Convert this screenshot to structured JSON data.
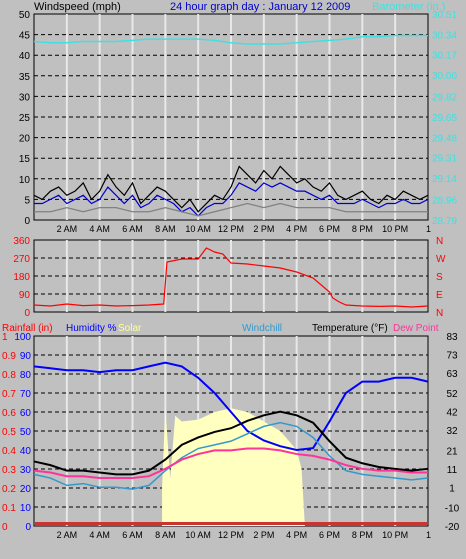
{
  "header": {
    "left_label": "Windspeed (mph)",
    "title": "24 hour graph day : January 12 2009",
    "right_label": "Barometer (in.)"
  },
  "colors": {
    "background": "#c0c0c0",
    "wind": "#000000",
    "gust": "#0000cc",
    "wind_gray": "#808080",
    "barometer": "#40e0e0",
    "direction": "#ff0000",
    "humidity": "#0000ff",
    "solar": "#ffffc0",
    "windchill": "#3399cc",
    "temperature": "#000000",
    "dewpoint": "#ff3399",
    "rainfall": "#ff0000"
  },
  "chart_data": [
    {
      "type": "line",
      "name": "wind_barometer",
      "x_ticks": [
        "2 AM",
        "4 AM",
        "6 AM",
        "8 AM",
        "10 AM",
        "12 PM",
        "2 PM",
        "4 PM",
        "6 PM",
        "8 PM",
        "10 PM"
      ],
      "left_axis": {
        "label": "Windspeed (mph)",
        "ticks": [
          0,
          5,
          10,
          15,
          20,
          25,
          30,
          35,
          40,
          45,
          50
        ],
        "ylim": [
          0,
          50
        ]
      },
      "right_axis": {
        "label": "Barometer (in.)",
        "ticks": [
          "28.79",
          "28.96",
          "29.14",
          "29.31",
          "29.48",
          "29.65",
          "29.82",
          "30.00",
          "30.17",
          "30.34",
          "30.51"
        ],
        "ylim": [
          28.79,
          30.51
        ]
      },
      "series": [
        {
          "key": "barometer",
          "x": [
            0,
            1,
            2,
            3,
            4,
            5,
            6,
            7,
            8,
            9,
            10,
            11,
            12,
            13,
            14,
            15,
            16,
            17,
            18,
            19,
            20,
            21,
            22,
            23,
            24
          ],
          "values": [
            30.28,
            30.27,
            30.27,
            30.28,
            30.28,
            30.28,
            30.29,
            30.3,
            30.3,
            30.3,
            30.3,
            30.29,
            30.27,
            30.26,
            30.26,
            30.26,
            30.27,
            30.28,
            30.29,
            30.3,
            30.32,
            30.32,
            30.33,
            30.33,
            30.33
          ]
        },
        {
          "key": "wind",
          "x": [
            0,
            0.5,
            1,
            1.5,
            2,
            2.5,
            3,
            3.5,
            4,
            4.5,
            5,
            5.5,
            6,
            6.5,
            7,
            7.5,
            8,
            8.5,
            9,
            9.5,
            10,
            10.5,
            11,
            11.5,
            12,
            12.5,
            13,
            13.5,
            14,
            14.5,
            15,
            15.5,
            16,
            16.5,
            17,
            17.5,
            18,
            18.5,
            19,
            19.5,
            20,
            20.5,
            21,
            21.5,
            22,
            22.5,
            23,
            23.5,
            24
          ],
          "values": [
            6,
            5,
            7,
            8,
            6,
            7,
            9,
            5,
            7,
            11,
            8,
            6,
            9,
            4,
            6,
            8,
            7,
            5,
            3,
            5,
            2,
            4,
            6,
            5,
            8,
            13,
            11,
            9,
            12,
            10,
            13,
            11,
            9,
            10,
            8,
            7,
            9,
            6,
            5,
            6,
            7,
            5,
            4,
            6,
            5,
            7,
            6,
            5,
            6
          ]
        },
        {
          "key": "gust",
          "x": [
            0,
            0.5,
            1,
            1.5,
            2,
            2.5,
            3,
            3.5,
            4,
            4.5,
            5,
            5.5,
            6,
            6.5,
            7,
            7.5,
            8,
            8.5,
            9,
            9.5,
            10,
            10.5,
            11,
            11.5,
            12,
            12.5,
            13,
            13.5,
            14,
            14.5,
            15,
            15.5,
            16,
            16.5,
            17,
            17.5,
            18,
            18.5,
            19,
            19.5,
            20,
            20.5,
            21,
            21.5,
            22,
            22.5,
            23,
            23.5,
            24
          ],
          "values": [
            4,
            4,
            5,
            6,
            4,
            5,
            6,
            4,
            5,
            8,
            6,
            4,
            6,
            3,
            4,
            6,
            5,
            4,
            2,
            3,
            1,
            3,
            4,
            4,
            6,
            9,
            8,
            7,
            9,
            8,
            9,
            8,
            7,
            7,
            6,
            5,
            6,
            4,
            4,
            4,
            5,
            4,
            3,
            4,
            4,
            5,
            4,
            4,
            5
          ]
        },
        {
          "key": "wind_gray",
          "x": [
            0,
            1,
            2,
            3,
            4,
            5,
            6,
            7,
            8,
            9,
            10,
            11,
            12,
            13,
            14,
            15,
            16,
            17,
            18,
            19,
            20,
            21,
            22,
            23,
            24
          ],
          "values": [
            2,
            2,
            3,
            2,
            3,
            3,
            2,
            2,
            3,
            2,
            1,
            2,
            3,
            4,
            3,
            4,
            3,
            3,
            3,
            2,
            2,
            2,
            2,
            2,
            2
          ]
        }
      ]
    },
    {
      "type": "line",
      "name": "wind_direction",
      "left_axis": {
        "ticks": [
          0,
          90,
          180,
          270,
          360
        ],
        "ylim": [
          0,
          360
        ]
      },
      "right_axis": {
        "ticks": [
          "N",
          "W",
          "S",
          "E",
          "N"
        ]
      },
      "series": [
        {
          "key": "direction",
          "x": [
            0,
            1,
            2,
            3,
            4,
            5,
            6,
            7,
            7.9,
            8.1,
            9,
            10,
            10.5,
            11,
            11.5,
            12,
            13,
            14,
            15,
            16,
            17,
            18,
            18.2,
            18.6,
            19,
            20,
            21,
            22,
            23,
            24
          ],
          "values": [
            35,
            30,
            40,
            32,
            35,
            30,
            32,
            35,
            40,
            250,
            265,
            265,
            320,
            300,
            290,
            245,
            240,
            230,
            220,
            200,
            170,
            100,
            70,
            50,
            35,
            30,
            28,
            30,
            25,
            30
          ]
        }
      ]
    },
    {
      "type": "line",
      "name": "temperature_humidity",
      "header_labels": {
        "rainfall": "Rainfall (in)",
        "humidity": "Humidity %",
        "solar": "Solar",
        "windchill": "Windchill",
        "temperature": "Temperature (°F)",
        "dewpoint": "Dew Point"
      },
      "rain_axis": {
        "ticks": [
          "0",
          "0.1",
          "0.2",
          "0.3",
          "0.4",
          "0.5",
          "0.6",
          "0.7",
          "0.8",
          "0.9",
          "1"
        ],
        "ylim": [
          0,
          1
        ]
      },
      "humidity_axis": {
        "ticks": [
          0,
          10,
          20,
          30,
          40,
          50,
          60,
          70,
          80,
          90,
          100
        ],
        "ylim": [
          0,
          100
        ]
      },
      "temp_axis": {
        "ticks": [
          -20,
          -10,
          1,
          11,
          21,
          32,
          42,
          52,
          63,
          73,
          83
        ],
        "ylim": [
          -20,
          83
        ]
      },
      "series": [
        {
          "key": "humidity",
          "x": [
            0,
            1,
            2,
            3,
            4,
            5,
            6,
            7,
            8,
            9,
            10,
            11,
            12,
            13,
            14,
            15,
            16,
            17,
            18,
            19,
            20,
            21,
            22,
            23,
            24
          ],
          "values": [
            84,
            83,
            82,
            82,
            81,
            82,
            82,
            84,
            86,
            84,
            78,
            70,
            60,
            50,
            45,
            42,
            40,
            41,
            55,
            70,
            76,
            76,
            78,
            78,
            76
          ]
        },
        {
          "key": "temperature",
          "x": [
            0,
            1,
            2,
            3,
            4,
            5,
            6,
            7,
            8,
            9,
            10,
            11,
            12,
            13,
            14,
            15,
            16,
            17,
            18,
            19,
            20,
            21,
            22,
            23,
            24
          ],
          "values": [
            15,
            13,
            10,
            10,
            9,
            8,
            8,
            10,
            16,
            24,
            28,
            31,
            33,
            37,
            40,
            42,
            40,
            36,
            26,
            17,
            14,
            12,
            11,
            10,
            11
          ]
        },
        {
          "key": "windchill",
          "x": [
            0,
            1,
            2,
            3,
            4,
            5,
            6,
            7,
            8,
            9,
            10,
            11,
            12,
            13,
            14,
            15,
            16,
            17,
            18,
            19,
            20,
            21,
            22,
            23,
            24
          ],
          "values": [
            8,
            6,
            2,
            3,
            1,
            1,
            0,
            2,
            10,
            17,
            22,
            24,
            26,
            30,
            34,
            36,
            34,
            28,
            18,
            10,
            8,
            7,
            6,
            5,
            6
          ]
        },
        {
          "key": "dewpoint",
          "x": [
            0,
            1,
            2,
            3,
            4,
            5,
            6,
            7,
            8,
            9,
            10,
            11,
            12,
            13,
            14,
            15,
            16,
            17,
            18,
            19,
            20,
            21,
            22,
            23,
            24
          ],
          "values": [
            10,
            9,
            7,
            7,
            6,
            6,
            6,
            7,
            11,
            16,
            19,
            21,
            21,
            22,
            22,
            21,
            19,
            18,
            16,
            13,
            11,
            10,
            10,
            9,
            9
          ]
        },
        {
          "key": "solar",
          "x": [
            7.8,
            8.0,
            8.3,
            8.6,
            9,
            10,
            11,
            12,
            13,
            14,
            15,
            15.5,
            16,
            16.3,
            16.5
          ],
          "values": [
            0.2,
            0.62,
            0.25,
            0.58,
            0.55,
            0.56,
            0.6,
            0.62,
            0.6,
            0.55,
            0.5,
            0.45,
            0.4,
            0.3,
            0
          ]
        },
        {
          "key": "rainfall",
          "x": [
            0,
            24
          ],
          "values": [
            0,
            0
          ]
        }
      ]
    }
  ]
}
